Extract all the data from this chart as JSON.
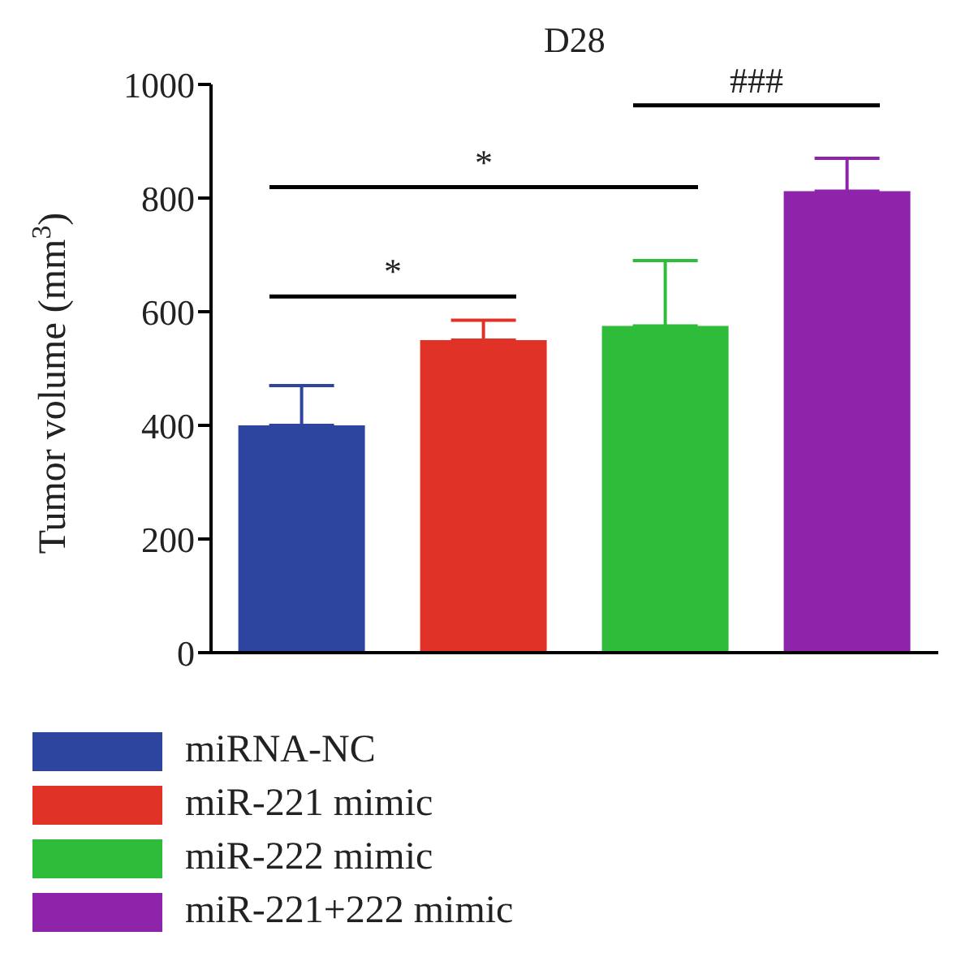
{
  "chart_data": {
    "type": "bar",
    "title": "D28",
    "ylabel": "Tumor volume (mm$^{3}$)",
    "categories": [
      null,
      null,
      null,
      null
    ],
    "stacked": true,
    "series": [
      {
        "name": "miRNA-NC",
        "color": "#2e45a0",
        "values": [
          400,
          null,
          null,
          null
        ],
        "errors": [
          [
            400,
            470
          ],
          null,
          null,
          null
        ]
      },
      {
        "name": "miR-221 mimic",
        "color": "#e03226",
        "values": [
          null,
          550,
          null,
          null
        ],
        "errors": [
          null,
          [
            550,
            585
          ],
          null,
          null
        ]
      },
      {
        "name": "miR-222 mimic",
        "color": "#2fbc3a",
        "values": [
          null,
          null,
          575,
          null
        ],
        "errors": [
          null,
          null,
          [
            575,
            690
          ],
          null
        ]
      },
      {
        "name": "miR-221+222 mimic",
        "color": "#8e24aa",
        "values": [
          null,
          null,
          null,
          812
        ],
        "errors": [
          null,
          null,
          null,
          [
            812,
            870
          ]
        ]
      }
    ],
    "ylim": [
      0,
      1000
    ],
    "yticks": [
      0,
      200,
      400,
      600,
      800,
      1000
    ],
    "grid": false,
    "legend": "bottom",
    "tick_labels": "y",
    "annotations": [
      "*",
      "*",
      "###"
    ]
  }
}
